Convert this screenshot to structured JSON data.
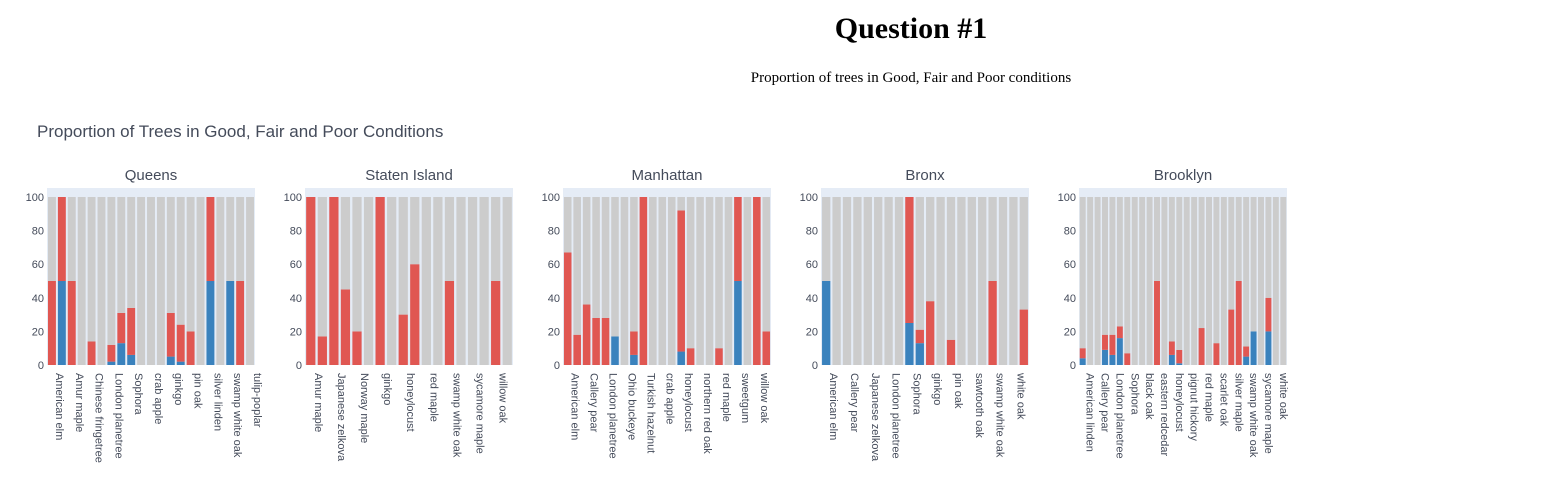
{
  "page": {
    "title": "Question #1",
    "subtitle": "Proportion of trees in Good, Fair and Poor conditions"
  },
  "colors": {
    "good": "#cccccc",
    "fair": "#e05752",
    "poor": "#3a82bd",
    "panel_bg": "#e5ecf6"
  },
  "chart_data": {
    "type": "bar",
    "stacked": true,
    "title": "Proportion of Trees in Good, Fair and Poor Conditions",
    "ylim": [
      0,
      100
    ],
    "yticks": [
      0,
      20,
      40,
      60,
      80,
      100
    ],
    "grid": false,
    "legend": "none",
    "panels": [
      {
        "name": "Queens",
        "species": [
          "American elm",
          "Amur maple",
          "Amur maple",
          "Chinese fringetree",
          "Chinese fringetree",
          "London planetree",
          "London planetree",
          "Sophora",
          "Sophora",
          "crab apple",
          "crab apple",
          "ginkgo",
          "ginkgo",
          "pin oak",
          "pin oak",
          "silver linden",
          "silver linden",
          "swamp white oak",
          "swamp white oak",
          "tulip-poplar",
          "tulip-poplar"
        ],
        "labels": [
          "American elm",
          "Amur maple",
          "Chinese fringetree",
          "London planetree",
          "Sophora",
          "crab apple",
          "ginkgo",
          "pin oak",
          "silver linden",
          "swamp white oak",
          "tulip-poplar"
        ],
        "poor": [
          0,
          50,
          0,
          0,
          0,
          0,
          2,
          13,
          6,
          0,
          0,
          0,
          5,
          2,
          0,
          0,
          50,
          0,
          50,
          0,
          0
        ],
        "fair": [
          50,
          50,
          50,
          0,
          14,
          0,
          10,
          18,
          28,
          0,
          0,
          0,
          26,
          22,
          20,
          0,
          50,
          0,
          0,
          50,
          0
        ],
        "good": [
          50,
          0,
          50,
          100,
          86,
          100,
          88,
          69,
          66,
          100,
          100,
          100,
          69,
          76,
          80,
          100,
          0,
          100,
          50,
          50,
          100
        ]
      },
      {
        "name": "Staten Island",
        "species": [
          "Amur maple",
          "Amur maple",
          "Japanese zelkova",
          "Japanese zelkova",
          "Norway maple",
          "Norway maple",
          "ginkgo",
          "ginkgo",
          "honeylocust",
          "honeylocust",
          "red maple",
          "red maple",
          "swamp white oak",
          "swamp white oak",
          "sycamore maple",
          "sycamore maple",
          "willow oak",
          "willow oak"
        ],
        "labels": [
          "Amur maple",
          "Japanese zelkova",
          "Norway maple",
          "ginkgo",
          "honeylocust",
          "red maple",
          "swamp white oak",
          "sycamore maple",
          "willow oak"
        ],
        "poor": [
          0,
          0,
          0,
          0,
          0,
          0,
          0,
          0,
          0,
          0,
          0,
          0,
          0,
          0,
          0,
          0,
          0,
          0
        ],
        "fair": [
          100,
          17,
          100,
          45,
          20,
          0,
          100,
          0,
          30,
          60,
          0,
          0,
          50,
          0,
          0,
          0,
          50,
          0
        ],
        "good": [
          0,
          83,
          0,
          55,
          80,
          100,
          0,
          100,
          70,
          40,
          100,
          100,
          50,
          100,
          100,
          100,
          50,
          100
        ]
      },
      {
        "name": "Manhattan",
        "species": [
          "American elm",
          "American elm",
          "Callery pear",
          "Callery pear",
          "London planetree",
          "London planetree",
          "Ohio buckeye",
          "Ohio buckeye",
          "Turkish hazelnut",
          "Turkish hazelnut",
          "crab apple",
          "crab apple",
          "honeylocust",
          "honeylocust",
          "northern red oak",
          "northern red oak",
          "red maple",
          "red maple",
          "sweetgum",
          "sweetgum",
          "willow oak",
          "willow oak"
        ],
        "labels": [
          "American elm",
          "Callery pear",
          "London planetree",
          "Ohio buckeye",
          "Turkish hazelnut",
          "crab apple",
          "honeylocust",
          "northern red oak",
          "red maple",
          "sweetgum",
          "willow oak"
        ],
        "poor": [
          0,
          0,
          0,
          0,
          0,
          17,
          0,
          6,
          0,
          0,
          0,
          0,
          8,
          0,
          0,
          0,
          0,
          0,
          50,
          0,
          0,
          0
        ],
        "fair": [
          67,
          18,
          36,
          28,
          28,
          0,
          0,
          14,
          100,
          0,
          0,
          0,
          84,
          10,
          0,
          0,
          10,
          0,
          50,
          0,
          100,
          20
        ],
        "good": [
          33,
          82,
          64,
          72,
          72,
          83,
          100,
          80,
          0,
          100,
          100,
          100,
          8,
          90,
          100,
          100,
          90,
          100,
          0,
          100,
          0,
          80
        ]
      },
      {
        "name": "Bronx",
        "species": [
          "American elm",
          "American elm",
          "Callery pear",
          "Callery pear",
          "Japanese zelkova",
          "Japanese zelkova",
          "London planetree",
          "London planetree",
          "Sophora",
          "Sophora",
          "ginkgo",
          "ginkgo",
          "pin oak",
          "pin oak",
          "sawtooth oak",
          "sawtooth oak",
          "swamp white oak",
          "swamp white oak",
          "white oak",
          "white oak"
        ],
        "labels": [
          "American elm",
          "Callery pear",
          "Japanese zelkova",
          "London planetree",
          "Sophora",
          "ginkgo",
          "pin oak",
          "sawtooth oak",
          "swamp white oak",
          "white oak"
        ],
        "poor": [
          50,
          0,
          0,
          0,
          0,
          0,
          0,
          0,
          25,
          13,
          0,
          0,
          0,
          0,
          0,
          0,
          0,
          0,
          0,
          0
        ],
        "fair": [
          0,
          0,
          0,
          0,
          0,
          0,
          0,
          0,
          75,
          8,
          38,
          0,
          15,
          0,
          0,
          0,
          50,
          0,
          0,
          33
        ],
        "good": [
          50,
          100,
          100,
          100,
          100,
          100,
          100,
          100,
          0,
          79,
          62,
          100,
          85,
          100,
          100,
          100,
          50,
          100,
          100,
          67
        ]
      },
      {
        "name": "Brooklyn",
        "species": [
          "American linden",
          "American linden",
          "Callery pear",
          "Callery pear",
          "London planetree",
          "London planetree",
          "Sophora",
          "Sophora",
          "black oak",
          "black oak",
          "eastern redcedar",
          "eastern redcedar",
          "honeylocust",
          "honeylocust",
          "pignut hickory",
          "pignut hickory",
          "red maple",
          "red maple",
          "scarlet oak",
          "scarlet oak",
          "silver maple",
          "silver maple",
          "swamp white oak",
          "swamp white oak",
          "sycamore maple",
          "sycamore maple",
          "white oak",
          "white oak"
        ],
        "labels": [
          "American linden",
          "Callery pear",
          "London planetree",
          "Sophora",
          "black oak",
          "eastern redcedar",
          "honeylocust",
          "pignut hickory",
          "red maple",
          "scarlet oak",
          "silver maple",
          "swamp white oak",
          "sycamore maple",
          "white oak"
        ],
        "poor": [
          4,
          0,
          0,
          9,
          6,
          16,
          0,
          0,
          0,
          0,
          0,
          0,
          6,
          1,
          0,
          0,
          0,
          0,
          0,
          0,
          0,
          0,
          5,
          20,
          0,
          20,
          0,
          0
        ],
        "fair": [
          6,
          0,
          0,
          9,
          12,
          7,
          7,
          0,
          0,
          0,
          50,
          0,
          8,
          8,
          0,
          0,
          22,
          0,
          13,
          0,
          33,
          50,
          6,
          0,
          0,
          20,
          0,
          0
        ],
        "good": [
          90,
          100,
          100,
          82,
          82,
          77,
          93,
          100,
          100,
          100,
          50,
          100,
          86,
          91,
          100,
          100,
          78,
          100,
          87,
          100,
          67,
          50,
          89,
          80,
          100,
          60,
          100,
          100
        ]
      }
    ]
  }
}
